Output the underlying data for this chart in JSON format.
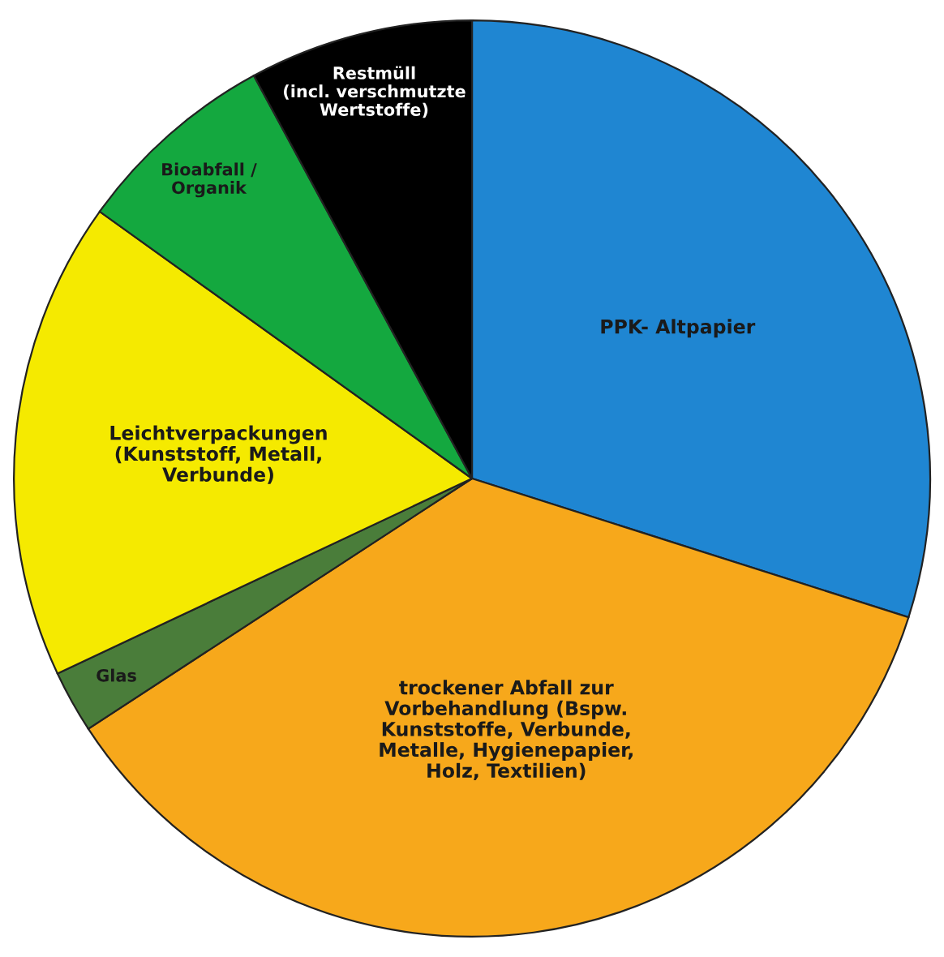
{
  "chart_data": {
    "type": "pie",
    "categories": [
      "PPK- Altpapier",
      "trockener Abfall zur\nVorbehandlung (Bspw.\nKunststoffe, Verbunde,\nMetalle, Hygienepapier,\nHolz, Textilien)",
      "Glas",
      "Leichtverpackungen\n(Kunststoff, Metall,\nVerbunde)",
      "Bioabfall /\nOrganik",
      "Restmüll\n(incl. verschmutzte\nWertstoffe)"
    ],
    "values": [
      29.9,
      35.9,
      2.2,
      16.9,
      7.2,
      7.9
    ],
    "colors": [
      "#1f86d2",
      "#f7a81b",
      "#4a7d3a",
      "#f5ea00",
      "#14a83f",
      "#000000"
    ]
  }
}
